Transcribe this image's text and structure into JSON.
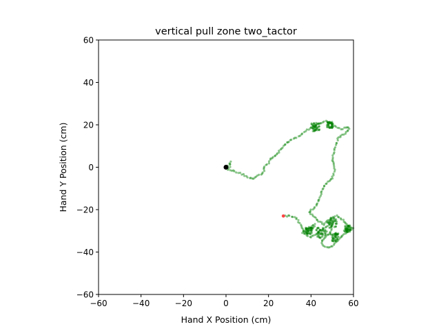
{
  "chart_data": {
    "type": "scatter",
    "title": "vertical pull zone two_tactor",
    "xlabel": "Hand X Position (cm)",
    "ylabel": "Hand Y Position (cm)",
    "xlim": [
      -60,
      60
    ],
    "ylim": [
      -60,
      60
    ],
    "xticks": [
      -60,
      -40,
      -20,
      0,
      20,
      40,
      60
    ],
    "yticks": [
      -60,
      -40,
      -20,
      0,
      20,
      40,
      60
    ],
    "grid": false,
    "legend": "none",
    "colors": {
      "trajectory": "#008000",
      "start": "#000000",
      "end": "#ff3333"
    },
    "start_point": {
      "x": 0,
      "y": 0
    },
    "end_point": {
      "x": 27,
      "y": -23
    },
    "trajectory_waypoints": [
      [
        0,
        0
      ],
      [
        1,
        1
      ],
      [
        2,
        2.5
      ],
      [
        2,
        1
      ],
      [
        1,
        -1
      ],
      [
        4,
        -2
      ],
      [
        8,
        -3.5
      ],
      [
        11,
        -5
      ],
      [
        13,
        -5.5
      ],
      [
        15,
        -4
      ],
      [
        17,
        -3
      ],
      [
        18,
        -1.5
      ],
      [
        18,
        0.5
      ],
      [
        20,
        2
      ],
      [
        21,
        4
      ],
      [
        24,
        6
      ],
      [
        26,
        9
      ],
      [
        28,
        11
      ],
      [
        31,
        13
      ],
      [
        34,
        14.5
      ],
      [
        36,
        16
      ],
      [
        38,
        17.5
      ],
      [
        41,
        19
      ],
      [
        43,
        20
      ],
      [
        45,
        21
      ],
      [
        47,
        22
      ],
      [
        49,
        21
      ],
      [
        51,
        19.5
      ],
      [
        54,
        18
      ],
      [
        57,
        19
      ],
      [
        58,
        18
      ],
      [
        56,
        16
      ],
      [
        53,
        14
      ],
      [
        52,
        11
      ],
      [
        51,
        8
      ],
      [
        50,
        4
      ],
      [
        51,
        1
      ],
      [
        51,
        -2
      ],
      [
        50,
        -5
      ],
      [
        48,
        -7
      ],
      [
        46,
        -9
      ],
      [
        45,
        -12
      ],
      [
        44,
        -15
      ],
      [
        43,
        -17
      ],
      [
        42,
        -19
      ],
      [
        40,
        -20
      ],
      [
        39,
        -21
      ],
      [
        41,
        -23
      ],
      [
        43,
        -25
      ],
      [
        46,
        -27
      ],
      [
        48,
        -25
      ],
      [
        50,
        -24
      ],
      [
        52,
        -23
      ],
      [
        54,
        -24
      ],
      [
        56,
        -26
      ],
      [
        58,
        -28
      ],
      [
        60,
        -29
      ],
      [
        58,
        -30
      ],
      [
        56,
        -31
      ],
      [
        54,
        -33
      ],
      [
        52,
        -35
      ],
      [
        50,
        -37
      ],
      [
        48,
        -38
      ],
      [
        46,
        -37
      ],
      [
        45,
        -35
      ],
      [
        47,
        -33
      ],
      [
        49,
        -31
      ],
      [
        50,
        -29
      ],
      [
        48,
        -28
      ],
      [
        46,
        -29
      ],
      [
        44,
        -31
      ],
      [
        42,
        -32
      ],
      [
        40,
        -33
      ],
      [
        38,
        -32
      ],
      [
        36,
        -31
      ],
      [
        38,
        -29
      ],
      [
        40,
        -28
      ],
      [
        42,
        -27
      ],
      [
        41,
        -29
      ],
      [
        39,
        -30
      ],
      [
        37,
        -31
      ],
      [
        35,
        -27
      ],
      [
        33,
        -24
      ],
      [
        30,
        -23
      ],
      [
        27,
        -23
      ]
    ],
    "clusters": [
      {
        "x": 42,
        "y": 19,
        "spread": 2.0
      },
      {
        "x": 49,
        "y": 20,
        "spread": 1.5
      },
      {
        "x": 50,
        "y": -26,
        "spread": 2.2
      },
      {
        "x": 45,
        "y": -31,
        "spread": 2.5
      },
      {
        "x": 57,
        "y": -29,
        "spread": 1.5
      },
      {
        "x": 39,
        "y": -30,
        "spread": 1.5
      },
      {
        "x": 51,
        "y": -33,
        "spread": 2.0
      }
    ]
  }
}
